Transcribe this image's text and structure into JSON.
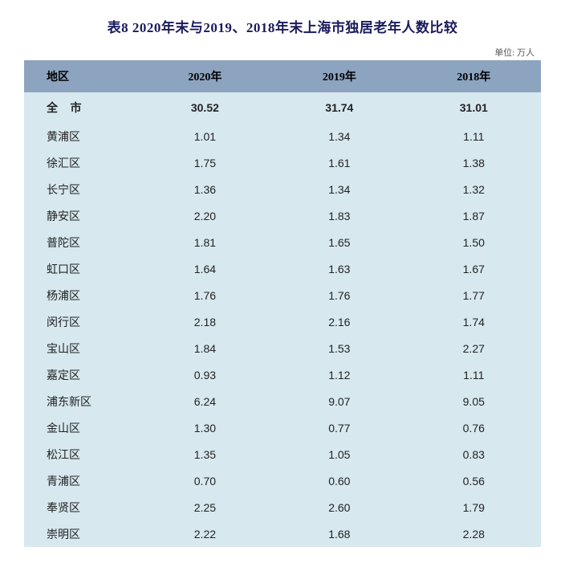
{
  "title": "表8 2020年末与2019、2018年末上海市独居老年人数比较",
  "unit_label": "单位: 万人",
  "table": {
    "type": "table",
    "header_bg": "#8ca4bf",
    "body_bg": "#d7e8ef",
    "title_color": "#1a1a5c",
    "columns": [
      "地区",
      "2020年",
      "2019年",
      "2018年"
    ],
    "total_row": {
      "label": "全 市",
      "y2020": "30.52",
      "y2019": "31.74",
      "y2018": "31.01"
    },
    "rows": [
      {
        "label": "黄浦区",
        "y2020": "1.01",
        "y2019": "1.34",
        "y2018": "1.11"
      },
      {
        "label": "徐汇区",
        "y2020": "1.75",
        "y2019": "1.61",
        "y2018": "1.38"
      },
      {
        "label": "长宁区",
        "y2020": "1.36",
        "y2019": "1.34",
        "y2018": "1.32"
      },
      {
        "label": "静安区",
        "y2020": "2.20",
        "y2019": "1.83",
        "y2018": "1.87"
      },
      {
        "label": "普陀区",
        "y2020": "1.81",
        "y2019": "1.65",
        "y2018": "1.50"
      },
      {
        "label": "虹口区",
        "y2020": "1.64",
        "y2019": "1.63",
        "y2018": "1.67"
      },
      {
        "label": "杨浦区",
        "y2020": "1.76",
        "y2019": "1.76",
        "y2018": "1.77"
      },
      {
        "label": "闵行区",
        "y2020": "2.18",
        "y2019": "2.16",
        "y2018": "1.74"
      },
      {
        "label": "宝山区",
        "y2020": "1.84",
        "y2019": "1.53",
        "y2018": "2.27"
      },
      {
        "label": "嘉定区",
        "y2020": "0.93",
        "y2019": "1.12",
        "y2018": "1.11"
      },
      {
        "label": "浦东新区",
        "y2020": "6.24",
        "y2019": "9.07",
        "y2018": "9.05"
      },
      {
        "label": "金山区",
        "y2020": "1.30",
        "y2019": "0.77",
        "y2018": "0.76"
      },
      {
        "label": "松江区",
        "y2020": "1.35",
        "y2019": "1.05",
        "y2018": "0.83"
      },
      {
        "label": "青浦区",
        "y2020": "0.70",
        "y2019": "0.60",
        "y2018": "0.56"
      },
      {
        "label": "奉贤区",
        "y2020": "2.25",
        "y2019": "2.60",
        "y2018": "1.79"
      },
      {
        "label": "崇明区",
        "y2020": "2.22",
        "y2019": "1.68",
        "y2018": "2.28"
      }
    ]
  }
}
